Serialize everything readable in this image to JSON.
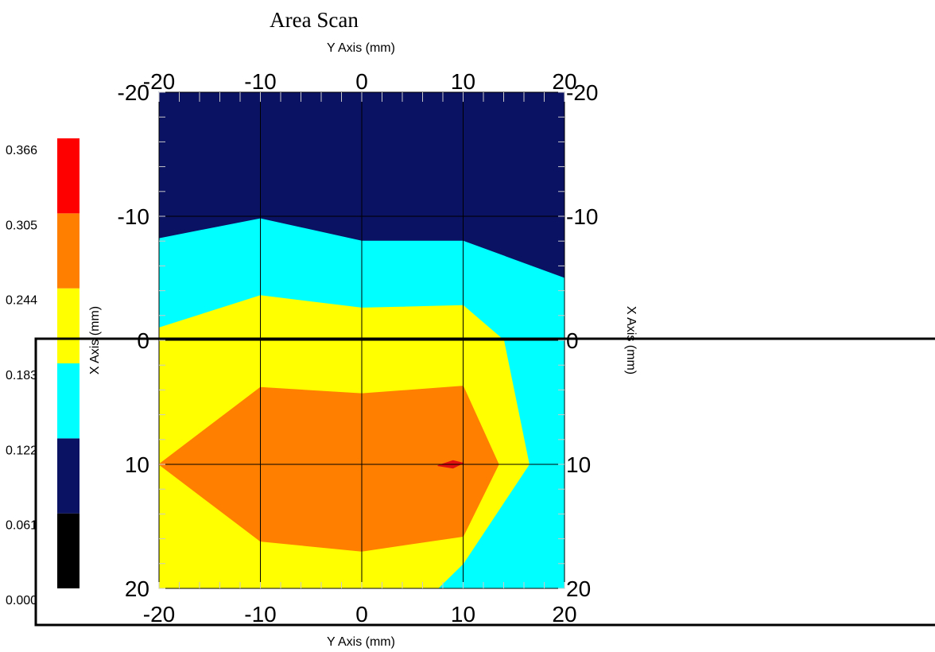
{
  "chart_data": {
    "type": "heatmap",
    "title": "Area Scan",
    "xlabel": "Y Axis (mm)",
    "ylabel": "X Axis (mm)",
    "x_range": [
      -20,
      20
    ],
    "y_range": [
      -20,
      20
    ],
    "x_ticks": [
      "-20",
      "-10",
      "0",
      "10",
      "20"
    ],
    "y_ticks": [
      "-20",
      "-10",
      "0",
      "10",
      "20"
    ],
    "grid": true,
    "colorbar": {
      "ticks": [
        "0.000",
        "0.061",
        "0.122",
        "0.183",
        "0.244",
        "0.305",
        "0.366"
      ],
      "colors": [
        "#000000",
        "#0a1264",
        "#00ffff",
        "#ffff00",
        "#ff8000",
        "#ff0000"
      ]
    },
    "regions": [
      {
        "level": "0.122-0.183",
        "color": "#0a1264",
        "points": [
          [
            -20,
            -20
          ],
          [
            20,
            -20
          ],
          [
            20,
            20
          ],
          [
            -20,
            20
          ]
        ]
      },
      {
        "level": "0.183-0.244",
        "color": "#00ffff",
        "points": [
          [
            -20,
            -8.2
          ],
          [
            -10,
            -9.8
          ],
          [
            0,
            -8
          ],
          [
            10,
            -8
          ],
          [
            20,
            -5
          ],
          [
            20,
            20
          ],
          [
            -20,
            20
          ]
        ]
      },
      {
        "level": "0.244-0.305",
        "color": "#ffff00",
        "points": [
          [
            -20,
            -1
          ],
          [
            -10,
            -3.6
          ],
          [
            0,
            -2.6
          ],
          [
            10,
            -2.8
          ],
          [
            14,
            0
          ],
          [
            16.5,
            10
          ],
          [
            10,
            18
          ],
          [
            7.5,
            20
          ],
          [
            -20,
            20
          ]
        ]
      },
      {
        "level": "0.305-0.366",
        "color": "#ff8000",
        "points": [
          [
            -20,
            10
          ],
          [
            -10,
            3.8
          ],
          [
            0,
            4.3
          ],
          [
            10,
            3.7
          ],
          [
            13.5,
            10
          ],
          [
            10,
            15.8
          ],
          [
            0,
            17
          ],
          [
            -10,
            16.2
          ]
        ]
      },
      {
        "level": "0.366+",
        "color": "#e01010",
        "points": [
          [
            7.5,
            10.1
          ],
          [
            9,
            9.7
          ],
          [
            10,
            9.9
          ],
          [
            9,
            10.3
          ]
        ]
      }
    ],
    "highlight_box": {
      "x_range": [
        -20,
        20
      ],
      "y_range": [
        0,
        20
      ]
    }
  }
}
